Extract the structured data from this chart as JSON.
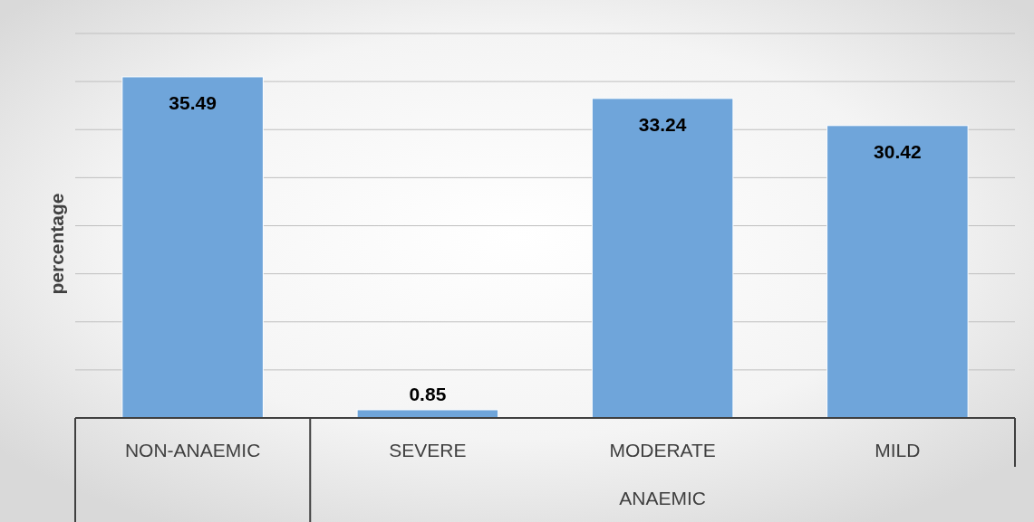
{
  "chart_data": {
    "type": "bar",
    "ylabel": "percentage",
    "categories": [
      "NON-ANAEMIC",
      "SEVERE",
      "MODERATE",
      "MILD"
    ],
    "values": [
      35.49,
      0.85,
      33.24,
      30.42
    ],
    "color": "#6fa5da",
    "ylim": [
      0,
      40
    ],
    "yticks": [
      {
        "value": 0,
        "label": null
      },
      {
        "value": 5,
        "label": null
      },
      {
        "value": 10,
        "label": null
      },
      {
        "value": 15,
        "label": null
      },
      {
        "value": 20,
        "label": null
      },
      {
        "value": 25,
        "label": null
      },
      {
        "value": 30,
        "label": null
      },
      {
        "value": 35,
        "label": null
      },
      {
        "value": 40,
        "label": null
      }
    ],
    "grid": "y",
    "tick_labels": "x",
    "data_labels": true,
    "annotations": [
      "ANAEMIC"
    ]
  }
}
